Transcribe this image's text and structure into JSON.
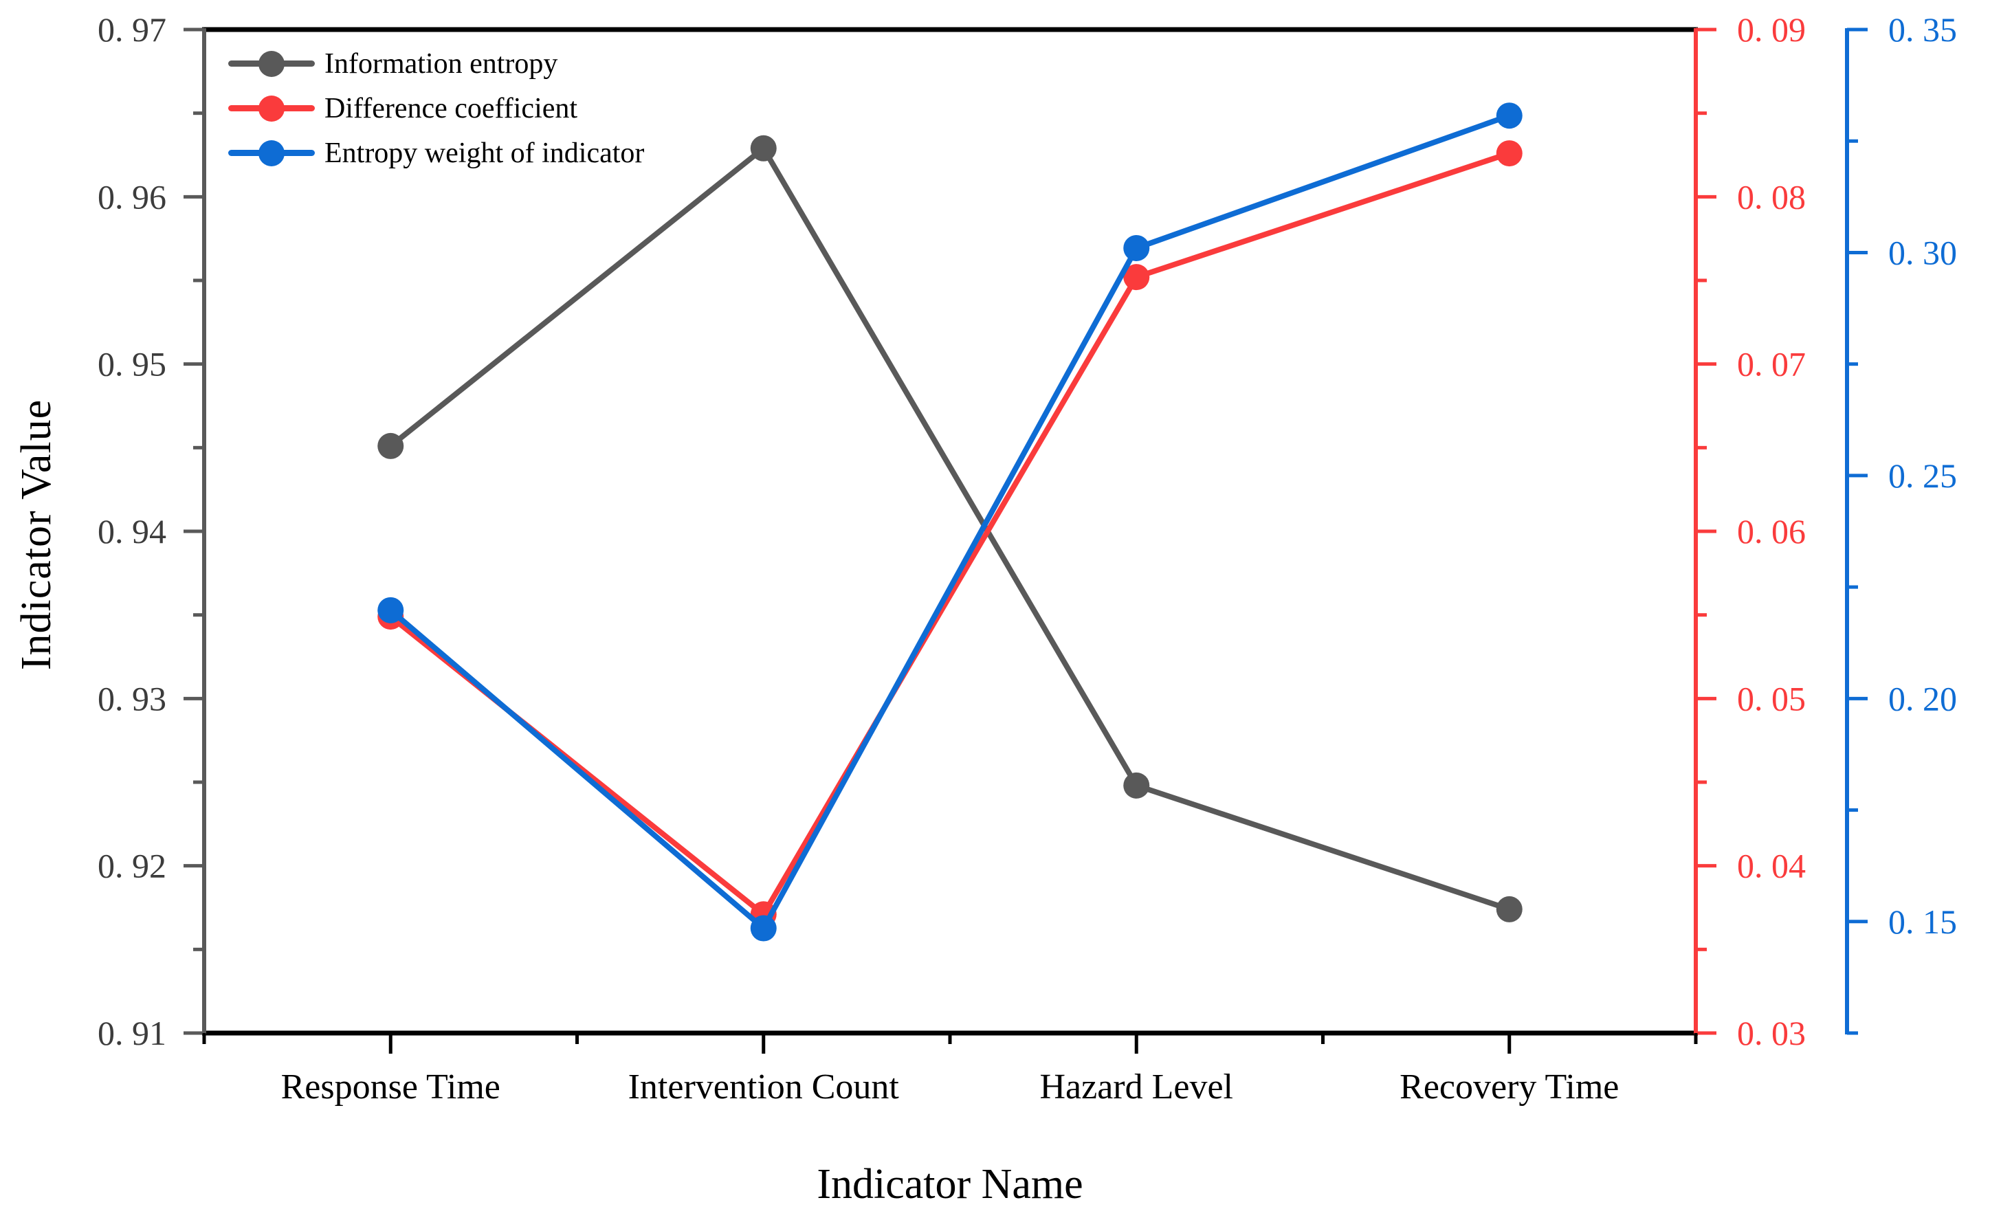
{
  "chart_data": {
    "type": "line",
    "title": "",
    "xlabel": "Indicator Name",
    "grid": false,
    "legend_position": "top-left",
    "categories": [
      "Response Time",
      "Intervention Count",
      "Hazard Level",
      "Recovery Time"
    ],
    "series": [
      {
        "name": "Information entropy",
        "axis": "left",
        "color": "#595959",
        "values": [
          0.9451,
          0.9629,
          0.9248,
          0.9174
        ]
      },
      {
        "name": "Difference coefficient",
        "axis": "red",
        "color": "#FA3B3C",
        "values": [
          0.0549,
          0.0371,
          0.0752,
          0.0826
        ]
      },
      {
        "name": "Entropy weight of indicator",
        "axis": "blue",
        "color": "#0E6CD4",
        "values": [
          0.2198,
          0.1485,
          0.301,
          0.3307
        ]
      }
    ],
    "axes": {
      "left": {
        "title": "Indicator Value",
        "range": [
          0.91,
          0.97
        ],
        "tick_values": [
          0.91,
          0.92,
          0.93,
          0.94,
          0.95,
          0.96,
          0.97
        ],
        "tick_labels": [
          "0. 91",
          "0. 92",
          "0. 93",
          "0. 94",
          "0. 95",
          "0. 96",
          "0. 97"
        ],
        "minor_tick_values": [
          0.915,
          0.925,
          0.935,
          0.945,
          0.955,
          0.965
        ],
        "color": "#595959",
        "label_color": "#3C3C3C"
      },
      "red": {
        "range": [
          0.03,
          0.09
        ],
        "tick_values": [
          0.03,
          0.04,
          0.05,
          0.06,
          0.07,
          0.08,
          0.09
        ],
        "tick_labels": [
          "0. 03",
          "0. 04",
          "0. 05",
          "0. 06",
          "0. 07",
          "0. 08",
          "0. 09"
        ],
        "minor_tick_values": [
          0.035,
          0.045,
          0.055,
          0.065,
          0.075,
          0.085
        ],
        "color": "#FA3B3C",
        "label_color": "#FA3B3C"
      },
      "blue": {
        "display_range": [
          0.125,
          0.35
        ],
        "tick_values": [
          0.15,
          0.2,
          0.25,
          0.3,
          0.35
        ],
        "tick_labels": [
          "0. 15",
          "0. 20",
          "0. 25",
          "0. 30",
          "0. 35"
        ],
        "minor_tick_values": [
          0.125,
          0.175,
          0.225,
          0.275,
          0.325
        ],
        "color": "#0E6CD4",
        "label_color": "#0E6CD4"
      }
    }
  }
}
